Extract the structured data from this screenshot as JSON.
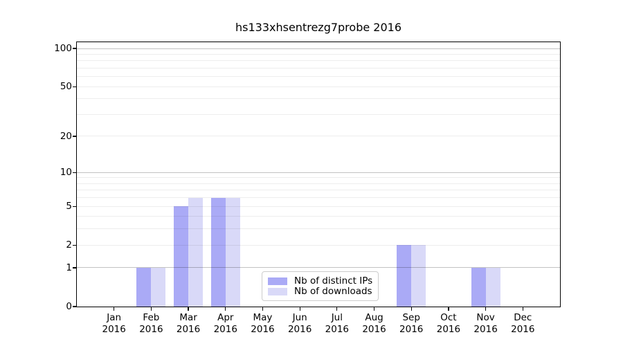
{
  "chart_data": {
    "type": "bar",
    "title": "hs133xhsentrezg7probe 2016",
    "categories": [
      "Jan",
      "Feb",
      "Mar",
      "Apr",
      "May",
      "Jun",
      "Jul",
      "Aug",
      "Sep",
      "Oct",
      "Nov",
      "Dec"
    ],
    "category_year": "2016",
    "series": [
      {
        "name": "Nb of distinct IPs",
        "color": "#aaaaf6",
        "values": [
          0,
          1,
          5,
          6,
          0,
          0,
          0,
          0,
          2,
          0,
          1,
          0
        ]
      },
      {
        "name": "Nb of downloads",
        "color": "#d9d9f8",
        "values": [
          0,
          1,
          6,
          6,
          0,
          0,
          0,
          0,
          2,
          0,
          1,
          0
        ]
      }
    ],
    "xlabel": "",
    "ylabel": "",
    "y_scale": "log10(1+y)",
    "ylim": [
      0,
      112
    ],
    "y_tick_labels": [
      "0",
      "1",
      "2",
      "5",
      "10",
      "20",
      "50",
      "100"
    ],
    "y_ticks": [
      0,
      1,
      2,
      5,
      10,
      20,
      50,
      100
    ],
    "y_grid_strong": [
      1,
      10,
      100
    ],
    "y_grid_light": [
      2,
      3,
      4,
      5,
      6,
      7,
      8,
      9,
      20,
      30,
      40,
      50,
      60,
      70,
      80,
      90
    ],
    "grid": true,
    "legend_position": "lower center inside"
  },
  "colors": {
    "axis": "#000000",
    "legend_border": "#cccccc",
    "background": "#ffffff"
  }
}
